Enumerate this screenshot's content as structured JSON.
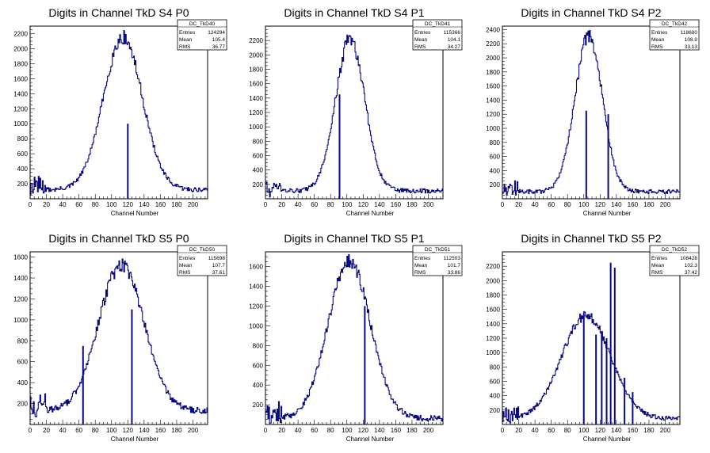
{
  "chart_data": [
    {
      "type": "line",
      "title": "Digits in Channel TkD S4 P0",
      "xlabel": "Channel Number",
      "ylabel": "",
      "xlim": [
        0,
        218
      ],
      "ylim": [
        0,
        2300
      ],
      "xticks": [
        0,
        20,
        40,
        60,
        80,
        100,
        120,
        140,
        160,
        180,
        200
      ],
      "yticks": [
        200,
        400,
        600,
        800,
        1000,
        1200,
        1400,
        1600,
        1800,
        2000,
        2200
      ],
      "stats": {
        "name": "DC_TkD40",
        "Entries": "124294",
        "Mean": "105.4",
        "RMS": "36.77"
      },
      "shape": {
        "center": 114,
        "sigma": 24,
        "peak": 2150,
        "base": 120
      },
      "spikes": [
        {
          "x": 120,
          "value": 1000
        }
      ],
      "series": [
        {
          "x": [
            0,
            10,
            20,
            30,
            40,
            50,
            60,
            70,
            80,
            90,
            100,
            105,
            110,
            114,
            118,
            120,
            125,
            130,
            140,
            150,
            160,
            170,
            180,
            190,
            200,
            210,
            218
          ],
          "values": [
            600,
            250,
            200,
            150,
            160,
            200,
            270,
            370,
            620,
            1050,
            1650,
            1950,
            2150,
            2150,
            1950,
            1000,
            1600,
            1100,
            500,
            280,
            200,
            160,
            120,
            110,
            100,
            80,
            80
          ]
        }
      ]
    },
    {
      "type": "line",
      "title": "Digits in Channel TkD S4 P1",
      "xlabel": "Channel Number",
      "ylabel": "",
      "xlim": [
        0,
        218
      ],
      "ylim": [
        0,
        2400
      ],
      "xticks": [
        0,
        20,
        40,
        60,
        80,
        100,
        120,
        140,
        160,
        180,
        200
      ],
      "yticks": [
        200,
        400,
        600,
        800,
        1000,
        1200,
        1400,
        1600,
        1800,
        2000,
        2200
      ],
      "stats": {
        "name": "DC_TkD41",
        "Entries": "115366",
        "Mean": "104.1",
        "RMS": "34.27"
      },
      "shape": {
        "center": 104,
        "sigma": 18,
        "peak": 2220,
        "base": 110
      },
      "spikes": [
        {
          "x": 91,
          "value": 1450
        }
      ],
      "series": [
        {
          "x": [
            0,
            20,
            40,
            60,
            70,
            80,
            90,
            95,
            100,
            104,
            110,
            120,
            130,
            140,
            150,
            160,
            180,
            200,
            218
          ],
          "values": [
            150,
            160,
            140,
            180,
            300,
            620,
            1300,
            1750,
            2100,
            2220,
            2050,
            1250,
            550,
            250,
            140,
            120,
            100,
            100,
            90
          ]
        }
      ]
    },
    {
      "type": "line",
      "title": "Digits in Channel TkD S4 P2",
      "xlabel": "Channel Number",
      "ylabel": "",
      "xlim": [
        0,
        218
      ],
      "ylim": [
        0,
        2450
      ],
      "xticks": [
        0,
        20,
        40,
        60,
        80,
        100,
        120,
        140,
        160,
        180,
        200
      ],
      "yticks": [
        200,
        400,
        600,
        800,
        1000,
        1200,
        1400,
        1600,
        1800,
        2000,
        2200,
        2400
      ],
      "stats": {
        "name": "DC_TkD42",
        "Entries": "118680",
        "Mean": "108.9",
        "RMS": "33.13"
      },
      "shape": {
        "center": 106,
        "sigma": 17,
        "peak": 2300,
        "base": 100
      },
      "spikes": [
        {
          "x": 103,
          "value": 1250
        },
        {
          "x": 130,
          "value": 1200
        }
      ],
      "series": [
        {
          "x": [
            0,
            20,
            40,
            60,
            70,
            80,
            90,
            100,
            103,
            106,
            110,
            120,
            130,
            140,
            150,
            160,
            180,
            200,
            210
          ],
          "values": [
            100,
            120,
            160,
            200,
            300,
            600,
            1300,
            2050,
            1250,
            2300,
            2150,
            1600,
            1200,
            350,
            220,
            180,
            170,
            200,
            280
          ]
        }
      ]
    },
    {
      "type": "line",
      "title": "Digits in Channel TkD S5 P0",
      "xlabel": "Channel Number",
      "ylabel": "",
      "xlim": [
        0,
        218
      ],
      "ylim": [
        0,
        1650
      ],
      "xticks": [
        0,
        20,
        40,
        60,
        80,
        100,
        120,
        140,
        160,
        180,
        200
      ],
      "yticks": [
        200,
        400,
        600,
        800,
        1000,
        1200,
        1400,
        1600
      ],
      "stats": {
        "name": "DC_TkD50",
        "Entries": "115698",
        "Mean": "107.7",
        "RMS": "37.61"
      },
      "shape": {
        "center": 112,
        "sigma": 28,
        "peak": 1520,
        "base": 130
      },
      "spikes": [
        {
          "x": 65,
          "value": 750
        },
        {
          "x": 125,
          "value": 1100
        }
      ],
      "series": [
        {
          "x": [
            0,
            10,
            20,
            30,
            40,
            50,
            60,
            65,
            70,
            80,
            90,
            100,
            110,
            112,
            120,
            125,
            130,
            140,
            150,
            160,
            170,
            180,
            190,
            200,
            210,
            218
          ],
          "values": [
            200,
            150,
            250,
            280,
            150,
            200,
            330,
            750,
            480,
            750,
            1000,
            1350,
            1520,
            1500,
            1350,
            1100,
            1250,
            1000,
            650,
            420,
            270,
            170,
            140,
            110,
            100,
            90
          ]
        }
      ]
    },
    {
      "type": "line",
      "title": "Digits in Channel TkD S5 P1",
      "xlabel": "Channel Number",
      "ylabel": "",
      "xlim": [
        0,
        218
      ],
      "ylim": [
        0,
        1750
      ],
      "xticks": [
        0,
        20,
        40,
        60,
        80,
        100,
        120,
        140,
        160,
        180,
        200
      ],
      "yticks": [
        200,
        400,
        600,
        800,
        1000,
        1200,
        1400,
        1600
      ],
      "stats": {
        "name": "DC_TkD51",
        "Entries": "112503",
        "Mean": "101.7",
        "RMS": "33.86"
      },
      "shape": {
        "center": 103,
        "sigma": 26,
        "peak": 1650,
        "base": 60
      },
      "spikes": [
        {
          "x": 122,
          "value": 1200
        }
      ],
      "series": [
        {
          "x": [
            0,
            10,
            20,
            30,
            40,
            50,
            60,
            70,
            80,
            90,
            100,
            103,
            110,
            120,
            122,
            130,
            140,
            150,
            160,
            170,
            180,
            190,
            200,
            210,
            218
          ],
          "values": [
            80,
            110,
            130,
            180,
            240,
            320,
            450,
            700,
            1000,
            1350,
            1600,
            1650,
            1550,
            1300,
            1200,
            900,
            600,
            350,
            200,
            100,
            40,
            180,
            120,
            0,
            0
          ]
        }
      ]
    },
    {
      "type": "line",
      "title": "Digits in Channel TkD S5 P2",
      "xlabel": "Channel Number",
      "ylabel": "",
      "xlim": [
        0,
        218
      ],
      "ylim": [
        0,
        2400
      ],
      "xticks": [
        0,
        20,
        40,
        60,
        80,
        100,
        120,
        140,
        160,
        180,
        200
      ],
      "yticks": [
        200,
        400,
        600,
        800,
        1000,
        1200,
        1400,
        1600,
        1800,
        2000,
        2200
      ],
      "stats": {
        "name": "DC_TkD52",
        "Entries": "108428",
        "Mean": "102.3",
        "RMS": "37.42"
      },
      "shape": {
        "center": 103,
        "sigma": 30,
        "peak": 1520,
        "base": 80
      },
      "spikes": [
        {
          "x": 100,
          "value": 1550
        },
        {
          "x": 115,
          "value": 1250
        },
        {
          "x": 122,
          "value": 1300
        },
        {
          "x": 128,
          "value": 1200
        },
        {
          "x": 133,
          "value": 2250
        },
        {
          "x": 138,
          "value": 2180
        },
        {
          "x": 150,
          "value": 650
        },
        {
          "x": 160,
          "value": 450
        }
      ],
      "series": [
        {
          "x": [
            0,
            10,
            20,
            30,
            40,
            50,
            60,
            70,
            80,
            90,
            100,
            103,
            110,
            120,
            130,
            140,
            150,
            160,
            170,
            180,
            190,
            200,
            210,
            218
          ],
          "values": [
            80,
            100,
            150,
            250,
            320,
            420,
            650,
            900,
            1150,
            1350,
            1500,
            1520,
            1450,
            1250,
            1050,
            800,
            550,
            400,
            300,
            230,
            200,
            150,
            120,
            100
          ]
        }
      ]
    }
  ]
}
